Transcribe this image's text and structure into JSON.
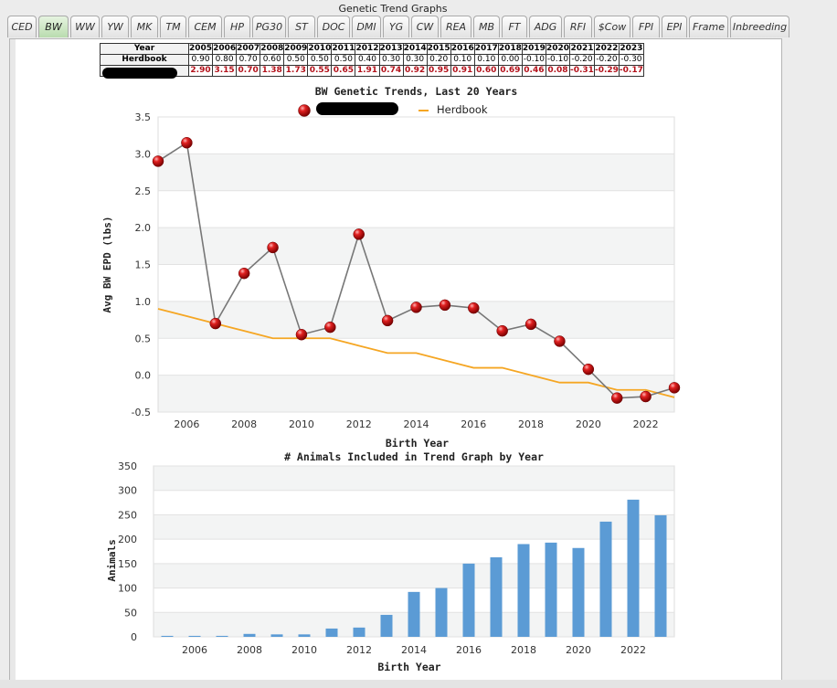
{
  "window_title": "Genetic Trend Graphs",
  "tabs": [
    "CED",
    "BW",
    "WW",
    "YW",
    "MK",
    "TM",
    "CEM",
    "HP",
    "PG30",
    "ST",
    "DOC",
    "DMI",
    "YG",
    "CW",
    "REA",
    "MB",
    "FT",
    "ADG",
    "RFI",
    "$Cow",
    "FPI",
    "EPI",
    "Frame",
    "Inbreeding"
  ],
  "active_tab": "BW",
  "table": {
    "year_label": "Year",
    "herdbook_label": "Herdbook",
    "years": [
      "2005",
      "2006",
      "2007",
      "2008",
      "2009",
      "2010",
      "2011",
      "2012",
      "2013",
      "2014",
      "2015",
      "2016",
      "2017",
      "2018",
      "2019",
      "2020",
      "2021",
      "2022",
      "2023"
    ],
    "herdbook": [
      "0.90",
      "0.80",
      "0.70",
      "0.60",
      "0.50",
      "0.50",
      "0.50",
      "0.40",
      "0.30",
      "0.30",
      "0.20",
      "0.10",
      "0.10",
      "0.00",
      "-0.10",
      "-0.10",
      "-0.20",
      "-0.20",
      "-0.30"
    ],
    "herd": [
      "2.90",
      "3.15",
      "0.70",
      "1.38",
      "1.73",
      "0.55",
      "0.65",
      "1.91",
      "0.74",
      "0.92",
      "0.95",
      "0.91",
      "0.60",
      "0.69",
      "0.46",
      "0.08",
      "-0.31",
      "-0.29",
      "-0.17"
    ]
  },
  "chart_data": [
    {
      "type": "line",
      "title": "BW Genetic Trends, Last 20 Years",
      "xlabel": "Birth Year",
      "ylabel": "Avg BW EPD (lbs)",
      "x": [
        2005,
        2006,
        2007,
        2008,
        2009,
        2010,
        2011,
        2012,
        2013,
        2014,
        2015,
        2016,
        2017,
        2018,
        2019,
        2020,
        2021,
        2022,
        2023
      ],
      "xlim": [
        2005,
        2023
      ],
      "ylim": [
        -0.5,
        3.5
      ],
      "yticks": [
        -0.5,
        0.0,
        0.5,
        1.0,
        1.5,
        2.0,
        2.5,
        3.0,
        3.5
      ],
      "xticks": [
        2006,
        2008,
        2010,
        2012,
        2014,
        2016,
        2018,
        2020,
        2022
      ],
      "legend": "top-center",
      "series": [
        {
          "name": "",
          "color": "#c81a1a",
          "line_color": "#777777",
          "marker": "sphere",
          "values": [
            2.9,
            3.15,
            0.7,
            1.38,
            1.73,
            0.55,
            0.65,
            1.91,
            0.74,
            0.92,
            0.95,
            0.91,
            0.6,
            0.69,
            0.46,
            0.08,
            -0.31,
            -0.29,
            -0.17
          ]
        },
        {
          "name": "Herdbook",
          "color": "#f5a623",
          "marker": "none",
          "values": [
            0.9,
            0.8,
            0.7,
            0.6,
            0.5,
            0.5,
            0.5,
            0.4,
            0.3,
            0.3,
            0.2,
            0.1,
            0.1,
            0.0,
            -0.1,
            -0.1,
            -0.2,
            -0.2,
            -0.3
          ]
        }
      ]
    },
    {
      "type": "bar",
      "title": "# Animals Included in Trend Graph by Year",
      "xlabel": "Birth Year",
      "ylabel": "Animals",
      "categories": [
        2005,
        2006,
        2007,
        2008,
        2009,
        2010,
        2011,
        2012,
        2013,
        2014,
        2015,
        2016,
        2017,
        2018,
        2019,
        2020,
        2021,
        2022,
        2023
      ],
      "values": [
        2,
        2,
        2,
        6,
        5,
        5,
        17,
        19,
        45,
        92,
        100,
        150,
        163,
        190,
        193,
        182,
        236,
        281,
        249
      ],
      "ylim": [
        0,
        350
      ],
      "yticks": [
        0,
        50,
        100,
        150,
        200,
        250,
        300,
        350
      ],
      "xticks": [
        2006,
        2008,
        2010,
        2012,
        2014,
        2016,
        2018,
        2020,
        2022
      ],
      "color": "#5b9bd5"
    }
  ]
}
